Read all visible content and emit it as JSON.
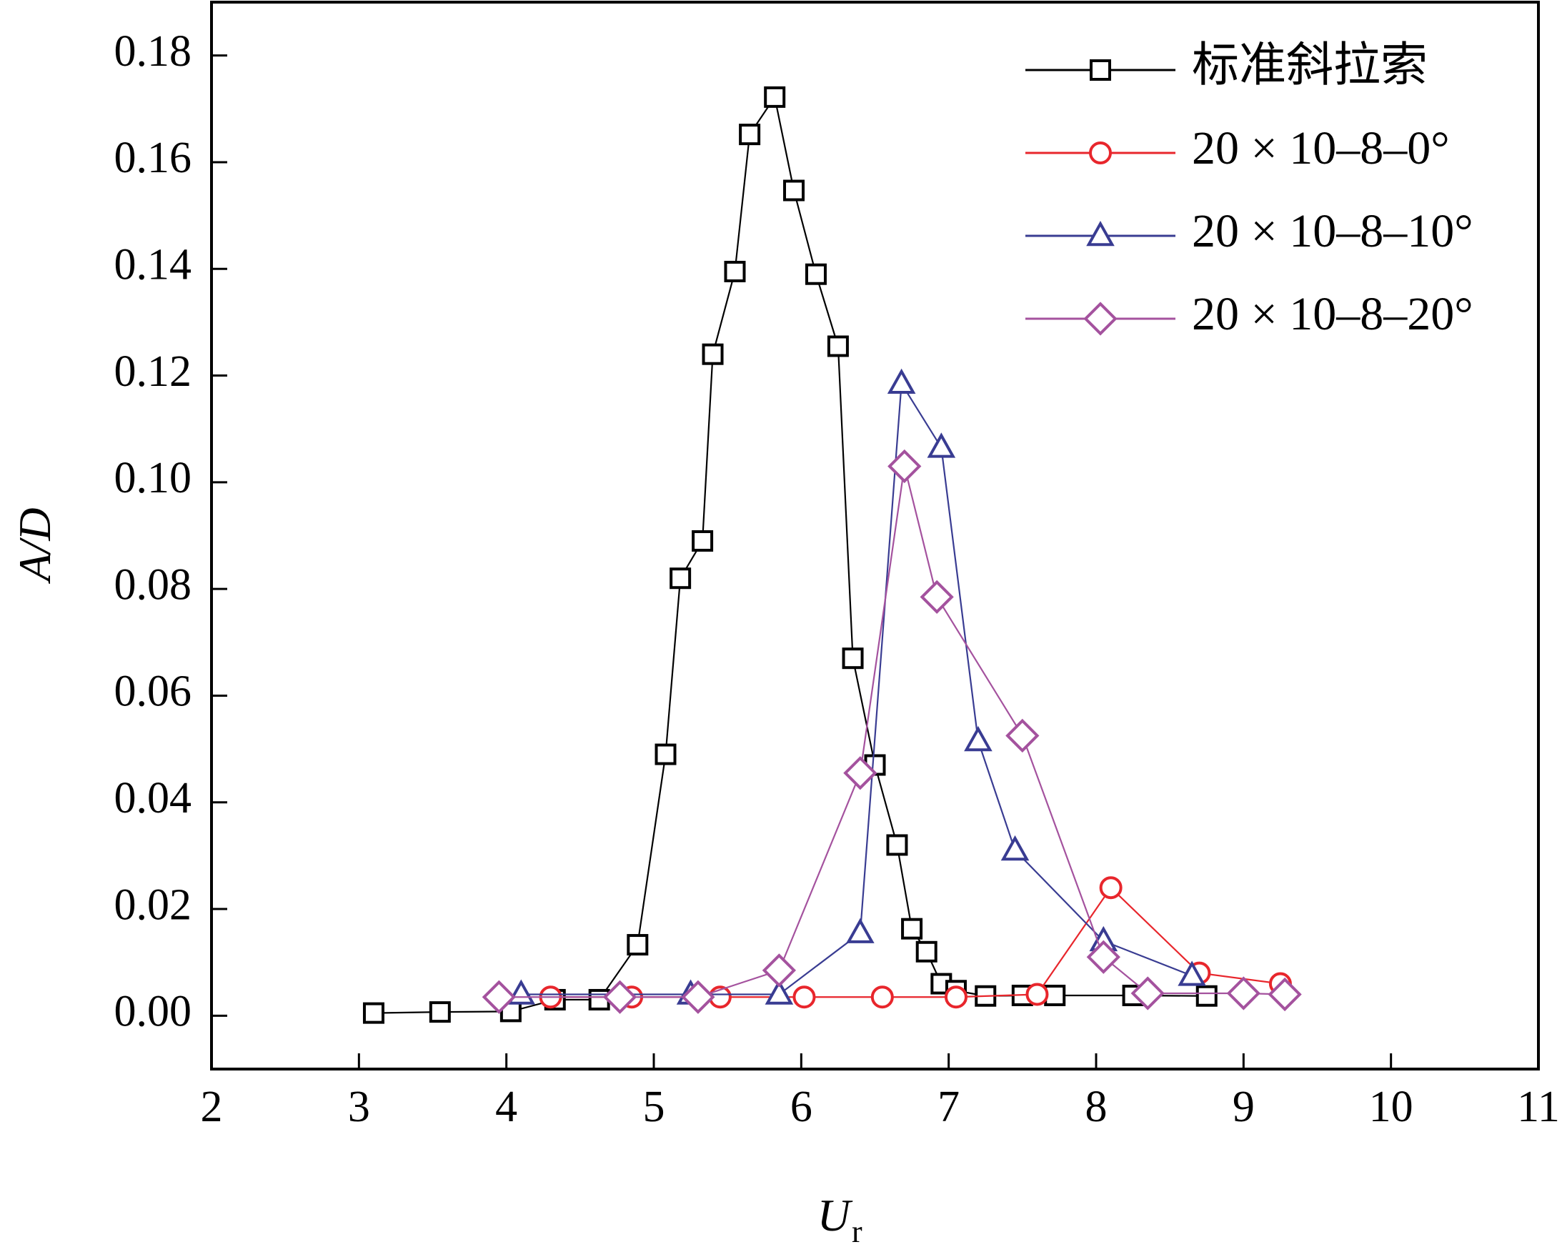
{
  "chart_data": {
    "type": "scatter",
    "xlabel": "U",
    "xlabel_sub": "r",
    "ylabel": "A/D",
    "xlim": [
      2,
      11
    ],
    "ylim": [
      -0.01,
      0.19
    ],
    "xticks": [
      2,
      3,
      4,
      5,
      6,
      7,
      8,
      9,
      10,
      11
    ],
    "yticks": [
      0.0,
      0.02,
      0.04,
      0.06,
      0.08,
      0.1,
      0.12,
      0.14,
      0.16,
      0.18
    ],
    "ytick_labels": [
      "0.00",
      "0.02",
      "0.04",
      "0.06",
      "0.08",
      "0.10",
      "0.12",
      "0.14",
      "0.16",
      "0.18"
    ],
    "grid": false,
    "legend_position": "top-right",
    "series": [
      {
        "name": "标准斜拉索",
        "color": "#000000",
        "marker": "square",
        "x": [
          3.1,
          3.55,
          4.03,
          4.33,
          4.63,
          4.89,
          5.08,
          5.18,
          5.33,
          5.4,
          5.55,
          5.65,
          5.82,
          5.95,
          6.1,
          6.25,
          6.35,
          6.5,
          6.65,
          6.75,
          6.85,
          6.95,
          7.05,
          7.25,
          7.5,
          7.72,
          8.25,
          8.75
        ],
        "y": [
          0.0005,
          0.0007,
          0.0008,
          0.003,
          0.003,
          0.0133,
          0.049,
          0.082,
          0.089,
          0.124,
          0.1395,
          0.1652,
          0.1722,
          0.1547,
          0.139,
          0.1255,
          0.067,
          0.047,
          0.032,
          0.0163,
          0.012,
          0.006,
          0.0047,
          0.0037,
          0.0038,
          0.0038,
          0.0038,
          0.0037
        ]
      },
      {
        "name": "20 × 10–8–0°",
        "color": "#e8262c",
        "marker": "circle",
        "x": [
          4.3,
          4.85,
          5.45,
          6.02,
          6.55,
          7.05,
          7.6,
          8.1,
          8.7,
          9.25
        ],
        "y": [
          0.0035,
          0.0035,
          0.0035,
          0.0035,
          0.0035,
          0.0035,
          0.004,
          0.024,
          0.008,
          0.006
        ]
      },
      {
        "name": "20 × 10–8–10°",
        "color": "#393c92",
        "marker": "triangle",
        "x": [
          4.1,
          5.25,
          5.85,
          6.4,
          6.68,
          6.95,
          7.2,
          7.45,
          8.05,
          8.65
        ],
        "y": [
          0.004,
          0.004,
          0.004,
          0.0155,
          0.1185,
          0.1065,
          0.0515,
          0.031,
          0.014,
          0.0075
        ]
      },
      {
        "name": "20 × 10–8–20°",
        "color": "#a4529e",
        "marker": "diamond",
        "x": [
          3.95,
          4.77,
          5.3,
          5.85,
          6.4,
          6.7,
          6.92,
          7.5,
          8.05,
          8.35,
          9.0,
          9.28
        ],
        "y": [
          0.0035,
          0.0035,
          0.0035,
          0.0085,
          0.0455,
          0.103,
          0.0785,
          0.0525,
          0.011,
          0.0042,
          0.0042,
          0.004
        ]
      }
    ]
  }
}
